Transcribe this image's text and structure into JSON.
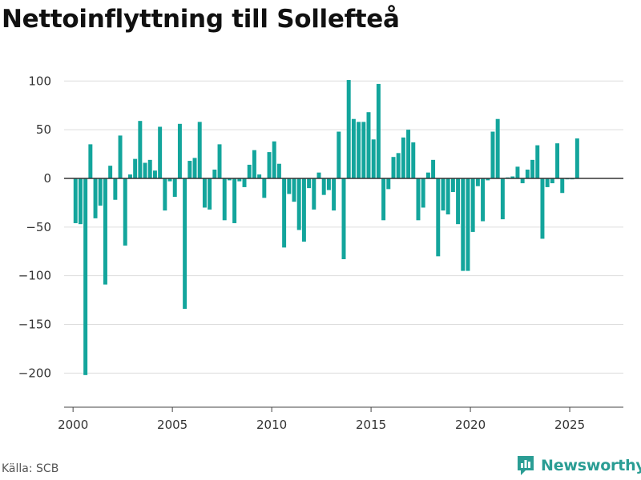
{
  "title": "Nettoinflyttning till Sollefteå",
  "source": "Källa: SCB",
  "brand": {
    "name": "Newsworthy",
    "icon": "newsworthy-logo-icon"
  },
  "colors": {
    "bar": "#13a59c",
    "grid": "#dddddd",
    "zero_line": "#333333",
    "axis": "#444444",
    "brand": "#2a9d94"
  },
  "chart_data": {
    "type": "bar",
    "title": "Nettoinflyttning till Sollefteå",
    "xlabel": "",
    "ylabel": "",
    "ylim": [
      -235,
      115
    ],
    "yticks": [
      100,
      50,
      0,
      -50,
      -100,
      -150,
      -200
    ],
    "ytick_labels": [
      "100",
      "50",
      "0",
      "−50",
      "−100",
      "−150",
      "−200"
    ],
    "xlim": [
      1999.55,
      2027.7
    ],
    "xticks": [
      2000,
      2005,
      2010,
      2015,
      2020,
      2025
    ],
    "xtick_labels": [
      "2000",
      "2005",
      "2010",
      "2015",
      "2020",
      "2025"
    ],
    "grid": true,
    "legend": "none",
    "x": [
      2000.125,
      2000.375,
      2000.625,
      2000.875,
      2001.125,
      2001.375,
      2001.625,
      2001.875,
      2002.125,
      2002.375,
      2002.625,
      2002.875,
      2003.125,
      2003.375,
      2003.625,
      2003.875,
      2004.125,
      2004.375,
      2004.625,
      2004.875,
      2005.125,
      2005.375,
      2005.625,
      2005.875,
      2006.125,
      2006.375,
      2006.625,
      2006.875,
      2007.125,
      2007.375,
      2007.625,
      2007.875,
      2008.125,
      2008.375,
      2008.625,
      2008.875,
      2009.125,
      2009.375,
      2009.625,
      2009.875,
      2010.125,
      2010.375,
      2010.625,
      2010.875,
      2011.125,
      2011.375,
      2011.625,
      2011.875,
      2012.125,
      2012.375,
      2012.625,
      2012.875,
      2013.125,
      2013.375,
      2013.625,
      2013.875,
      2014.125,
      2014.375,
      2014.625,
      2014.875,
      2015.125,
      2015.375,
      2015.625,
      2015.875,
      2016.125,
      2016.375,
      2016.625,
      2016.875,
      2017.125,
      2017.375,
      2017.625,
      2017.875,
      2018.125,
      2018.375,
      2018.625,
      2018.875,
      2019.125,
      2019.375,
      2019.625,
      2019.875,
      2020.125,
      2020.375,
      2020.625,
      2020.875,
      2021.125,
      2021.375,
      2021.625,
      2021.875,
      2022.125,
      2022.375,
      2022.625,
      2022.875,
      2023.125,
      2023.375,
      2023.625,
      2023.875,
      2024.125,
      2024.375,
      2024.625,
      2024.875,
      2025.125,
      2025.375
    ],
    "values": [
      -46,
      -47,
      -202,
      35,
      -41,
      -28,
      -109,
      13,
      -22,
      44,
      -69,
      4,
      20,
      59,
      16,
      19,
      8,
      53,
      -33,
      -3,
      -19,
      56,
      -134,
      18,
      21,
      58,
      -30,
      -32,
      9,
      35,
      -43,
      -2,
      -46,
      -3,
      -9,
      14,
      29,
      4,
      -20,
      27,
      38,
      15,
      -71,
      -16,
      -24,
      -53,
      -65,
      -10,
      -32,
      6,
      -17,
      -12,
      -33,
      48,
      -83,
      101,
      61,
      58,
      58,
      68,
      40,
      97,
      -43,
      -11,
      22,
      26,
      42,
      50,
      37,
      -43,
      -30,
      6,
      19,
      -80,
      -33,
      -37,
      -14,
      -47,
      -95,
      -95,
      -55,
      -8,
      -44,
      -2,
      48,
      61,
      -42,
      1,
      2,
      12,
      -5,
      9,
      19,
      34,
      -62,
      -9,
      -5,
      36,
      -15,
      -1,
      -1,
      41
    ]
  }
}
